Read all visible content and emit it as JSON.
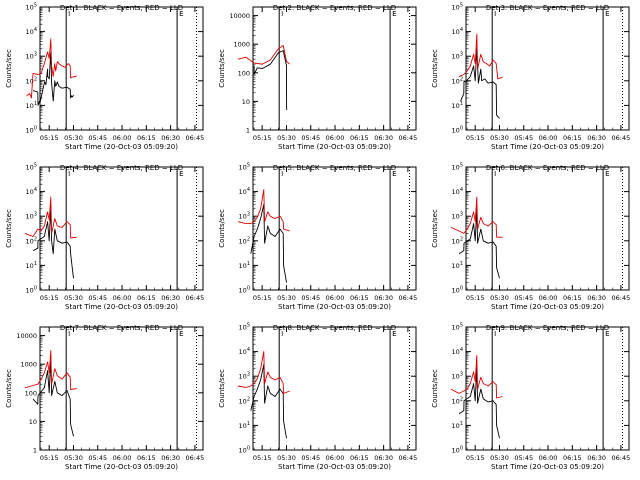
{
  "colors": {
    "events": "#000000",
    "lld": "#dd0000",
    "axes": "#000000"
  },
  "shared": {
    "xlabel": "Start Time (20-Oct-03 05:09:20)",
    "ylabel": "Counts/sec",
    "xticks": [
      "05:15",
      "05:30",
      "05:45",
      "06:00",
      "06:15",
      "06:30",
      "06:45"
    ],
    "xtick_minutes": [
      15,
      30,
      45,
      60,
      75,
      90,
      105
    ],
    "xlim_minutes": [
      9.33,
      110
    ],
    "markers": {
      "start_minute": 25.5,
      "end_minute": 94,
      "dotted_minute": 106,
      "start_label": "I",
      "end_label": "E"
    }
  },
  "chart_data": [
    {
      "type": "line",
      "title": "Det 1: BLACK = Events, RED = LLD",
      "xlabel": "Start Time (20-Oct-03 05:09:20)",
      "ylabel": "Counts/sec",
      "yscale": "log",
      "ylim": [
        1,
        100000
      ],
      "ytick_labels": [
        "10^0",
        "10^1",
        "10^2",
        "10^3",
        "10^4",
        "10^5"
      ],
      "series": [
        {
          "name": "Events",
          "color": "#000000",
          "x": [
            5,
            8,
            8.1,
            9,
            9.2,
            12,
            12.1,
            13,
            14,
            14.1,
            15,
            16,
            16.5,
            17.5,
            18.5,
            19,
            19.5,
            20,
            21,
            23,
            26,
            28,
            28.2,
            29,
            29.2,
            30,
            30.2
          ],
          "y": [
            40,
            35,
            10,
            15,
            12,
            80,
            90,
            70,
            300,
            150,
            120,
            1500,
            80,
            15,
            100,
            60,
            70,
            90,
            60,
            50,
            55,
            45,
            20,
            25,
            22,
            25,
            24
          ]
        },
        {
          "name": "LLD",
          "color": "#dd0000",
          "x": [
            1,
            3,
            4,
            5,
            8,
            10,
            12,
            14,
            15,
            16,
            16.5,
            17.5,
            18.5,
            19,
            20,
            21,
            23,
            25,
            26,
            27,
            28,
            28.2,
            29,
            31,
            32
          ],
          "y": [
            25,
            30,
            20,
            200,
            180,
            200,
            500,
            1500,
            800,
            5000,
            400,
            150,
            500,
            250,
            600,
            500,
            400,
            350,
            450,
            500,
            400,
            130,
            140,
            150,
            160
          ]
        }
      ]
    },
    {
      "type": "line",
      "title": "Det 2: BLACK = Events, RED = LLD",
      "xlabel": "Start Time (20-Oct-03 05:09:20)",
      "ylabel": "Counts/sec",
      "yscale": "log",
      "ylim": [
        1,
        20000
      ],
      "ytick_labels": [
        "1",
        "10",
        "100",
        "1000",
        "10000"
      ],
      "series": [
        {
          "name": "Events",
          "color": "#000000",
          "x": [
            10,
            10.1,
            12,
            15,
            20,
            25,
            28,
            30,
            30.1,
            30.2
          ],
          "y": [
            180,
            90,
            150,
            140,
            200,
            500,
            600,
            180,
            6,
            5
          ]
        },
        {
          "name": "LLD",
          "color": "#dd0000",
          "x": [
            0,
            5,
            10,
            15,
            20,
            25,
            28,
            30,
            32
          ],
          "y": [
            300,
            350,
            220,
            200,
            280,
            700,
            900,
            250,
            200
          ]
        }
      ]
    },
    {
      "type": "line",
      "title": "Det 3: BLACK = Events, RED = LLD",
      "xlabel": "Start Time (20-Oct-03 05:09:20)",
      "ylabel": "Counts/sec",
      "yscale": "log",
      "ylim": [
        1,
        100000
      ],
      "ytick_labels": [
        "10^0",
        "10^1",
        "10^2",
        "10^3",
        "10^4",
        "10^5"
      ],
      "series": [
        {
          "name": "Events",
          "color": "#000000",
          "x": [
            6,
            8,
            8.1,
            9,
            12,
            14,
            15,
            16,
            17,
            18.5,
            19,
            21,
            23,
            26,
            28,
            28.2,
            30
          ],
          "y": [
            15,
            30,
            100,
            90,
            150,
            400,
            100,
            2000,
            80,
            300,
            100,
            120,
            80,
            90,
            70,
            4,
            3
          ]
        },
        {
          "name": "LLD",
          "color": "#dd0000",
          "x": [
            5,
            8,
            10,
            12,
            14,
            15,
            16,
            16.5,
            18.5,
            20,
            22,
            24,
            26,
            28,
            29,
            32
          ],
          "y": [
            150,
            180,
            250,
            400,
            1200,
            500,
            8000,
            300,
            1200,
            600,
            500,
            400,
            700,
            500,
            120,
            140
          ]
        }
      ]
    },
    {
      "type": "line",
      "title": "Det 4: BLACK = Events, RED = LLD",
      "xlabel": "Start Time (20-Oct-03 05:09:20)",
      "ylabel": "Counts/sec",
      "yscale": "log",
      "ylim": [
        1,
        100000
      ],
      "ytick_labels": [
        "10^0",
        "10^1",
        "10^2",
        "10^3",
        "10^4",
        "10^5"
      ],
      "series": [
        {
          "name": "Events",
          "color": "#000000",
          "x": [
            5,
            8,
            8.1,
            12,
            14,
            15,
            16,
            16.5,
            17.5,
            18.5,
            20,
            23,
            26,
            28,
            28.2,
            30
          ],
          "y": [
            40,
            50,
            100,
            150,
            600,
            100,
            2500,
            100,
            30,
            300,
            100,
            80,
            90,
            60,
            30,
            3
          ]
        },
        {
          "name": "LLD",
          "color": "#dd0000",
          "x": [
            0,
            5,
            8,
            10,
            12,
            14,
            15,
            16,
            16.5,
            18.5,
            20,
            23,
            26,
            28,
            28.2,
            32
          ],
          "y": [
            200,
            150,
            300,
            250,
            400,
            1500,
            700,
            6000,
            200,
            800,
            400,
            350,
            600,
            450,
            130,
            140
          ]
        }
      ]
    },
    {
      "type": "line",
      "title": "Det 5: BLACK = Events, RED = LLD",
      "xlabel": "Start Time (20-Oct-03 05:09:20)",
      "ylabel": "Counts/sec",
      "yscale": "log",
      "ylim": [
        1,
        100000
      ],
      "ytick_labels": [
        "10^0",
        "10^1",
        "10^2",
        "10^3",
        "10^4",
        "10^5"
      ],
      "series": [
        {
          "name": "Events",
          "color": "#000000",
          "x": [
            8,
            10,
            12,
            14,
            16,
            16.5,
            18.5,
            20,
            23,
            26,
            28,
            28.2,
            30
          ],
          "y": [
            30,
            150,
            300,
            800,
            3000,
            80,
            400,
            200,
            150,
            300,
            200,
            10,
            2
          ]
        },
        {
          "name": "LLD",
          "color": "#dd0000",
          "x": [
            0,
            5,
            8,
            10,
            12,
            14,
            16,
            16.5,
            18.5,
            20,
            23,
            26,
            28,
            28.2,
            32
          ],
          "y": [
            600,
            500,
            500,
            600,
            900,
            2000,
            12000,
            600,
            1500,
            1000,
            800,
            1000,
            600,
            300,
            250
          ]
        }
      ]
    },
    {
      "type": "line",
      "title": "Det 6: BLACK = Events, RED = LLD",
      "xlabel": "Start Time (20-Oct-03 05:09:20)",
      "ylabel": "Counts/sec",
      "yscale": "log",
      "ylim": [
        1,
        100000
      ],
      "ytick_labels": [
        "10^0",
        "10^1",
        "10^2",
        "10^3",
        "10^4",
        "10^5"
      ],
      "series": [
        {
          "name": "Events",
          "color": "#000000",
          "x": [
            5,
            8,
            8.1,
            12,
            14,
            15,
            16,
            16.5,
            18.5,
            20,
            23,
            26,
            28,
            28.2,
            30
          ],
          "y": [
            30,
            40,
            80,
            120,
            500,
            100,
            2000,
            80,
            300,
            100,
            80,
            90,
            60,
            8,
            3
          ]
        },
        {
          "name": "LLD",
          "color": "#dd0000",
          "x": [
            0,
            5,
            8,
            10,
            12,
            14,
            15,
            16,
            16.5,
            18.5,
            20,
            23,
            26,
            28,
            28.2,
            32
          ],
          "y": [
            350,
            250,
            200,
            300,
            500,
            1500,
            600,
            6000,
            300,
            900,
            500,
            400,
            600,
            450,
            140,
            140
          ]
        }
      ]
    },
    {
      "type": "line",
      "title": "Det 7: BLACK = Events, RED = LLD",
      "xlabel": "Start Time (20-Oct-03 05:09:20)",
      "ylabel": "Counts/sec",
      "yscale": "log",
      "ylim": [
        1,
        20000
      ],
      "ytick_labels": [
        "1",
        "10",
        "100",
        "1000",
        "10000"
      ],
      "series": [
        {
          "name": "Events",
          "color": "#000000",
          "x": [
            5,
            8,
            8.1,
            12,
            14,
            15,
            16,
            16.5,
            18.5,
            20,
            23,
            26,
            28,
            28.2,
            30
          ],
          "y": [
            60,
            40,
            80,
            150,
            600,
            100,
            2000,
            80,
            250,
            100,
            80,
            120,
            60,
            8,
            3
          ]
        },
        {
          "name": "LLD",
          "color": "#dd0000",
          "x": [
            0,
            5,
            8,
            10,
            12,
            14,
            15,
            16,
            16.5,
            18.5,
            20,
            23,
            26,
            28,
            28.2,
            32
          ],
          "y": [
            150,
            180,
            200,
            300,
            500,
            1200,
            500,
            3000,
            200,
            700,
            400,
            300,
            500,
            350,
            130,
            140
          ]
        }
      ]
    },
    {
      "type": "line",
      "title": "Det 8: BLACK = Events, RED = LLD",
      "xlabel": "Start Time (20-Oct-03 05:09:20)",
      "ylabel": "Counts/sec",
      "yscale": "log",
      "ylim": [
        1,
        100000
      ],
      "ytick_labels": [
        "10^0",
        "10^1",
        "10^2",
        "10^3",
        "10^4",
        "10^5"
      ],
      "series": [
        {
          "name": "Events",
          "color": "#000000",
          "x": [
            8,
            10,
            12,
            14,
            16,
            16.5,
            18.5,
            20,
            23,
            26,
            28,
            28.2,
            30
          ],
          "y": [
            40,
            150,
            300,
            700,
            3000,
            80,
            400,
            200,
            150,
            300,
            200,
            15,
            3
          ]
        },
        {
          "name": "LLD",
          "color": "#dd0000",
          "x": [
            0,
            5,
            8,
            10,
            12,
            14,
            16,
            16.5,
            18.5,
            20,
            23,
            26,
            28,
            28.2,
            32
          ],
          "y": [
            400,
            350,
            400,
            500,
            800,
            2000,
            10000,
            500,
            1500,
            900,
            700,
            900,
            500,
            200,
            250
          ]
        }
      ]
    },
    {
      "type": "line",
      "title": "Det 9: BLACK = Events, RED = LLD",
      "xlabel": "Start Time (20-Oct-03 05:09:20)",
      "ylabel": "Counts/sec",
      "yscale": "log",
      "ylim": [
        1,
        100000
      ],
      "ytick_labels": [
        "10^0",
        "10^1",
        "10^2",
        "10^3",
        "10^4",
        "10^5"
      ],
      "series": [
        {
          "name": "Events",
          "color": "#000000",
          "x": [
            5,
            8,
            8.1,
            12,
            14,
            15,
            16,
            16.5,
            18.5,
            20,
            23,
            26,
            28,
            28.2,
            30
          ],
          "y": [
            30,
            40,
            100,
            150,
            500,
            100,
            2500,
            80,
            300,
            120,
            90,
            100,
            70,
            10,
            3
          ]
        },
        {
          "name": "LLD",
          "color": "#dd0000",
          "x": [
            0,
            5,
            8,
            10,
            12,
            14,
            15,
            16,
            16.5,
            18.5,
            20,
            23,
            26,
            28,
            28.2,
            32
          ],
          "y": [
            300,
            200,
            250,
            300,
            500,
            1500,
            600,
            7000,
            300,
            900,
            500,
            400,
            600,
            450,
            130,
            150
          ]
        }
      ]
    }
  ]
}
